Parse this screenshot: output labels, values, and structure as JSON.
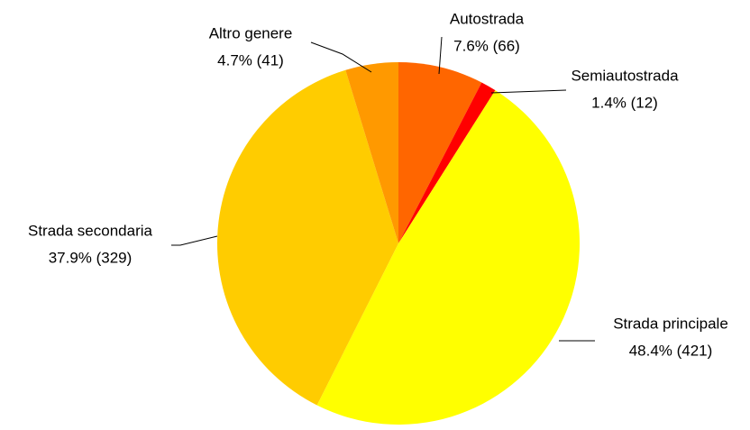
{
  "chart_data": {
    "type": "pie",
    "categories": [
      "Autostrada",
      "Semiautostrada",
      "Strada principale",
      "Strada secondaria",
      "Altro genere"
    ],
    "values": [
      66,
      12,
      421,
      329,
      41
    ],
    "value_labels": [
      "7.6% (66)",
      "1.4% (12)",
      "48.4% (421)",
      "37.9% (329)",
      "4.7% (41)"
    ],
    "colors": [
      "#ff6600",
      "#ff0000",
      "#ffff00",
      "#ffcc00",
      "#ff9900"
    ]
  }
}
